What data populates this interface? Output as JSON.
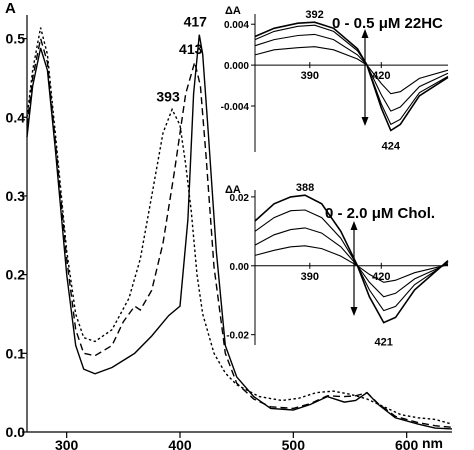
{
  "chart_data": [
    {
      "type": "line",
      "ylabel": "A",
      "xunit": "nm",
      "xlim": [
        265,
        640
      ],
      "ylim": [
        0,
        0.53
      ],
      "xticks": [
        300,
        400,
        500,
        600
      ],
      "yticks": [
        0.0,
        0.1,
        0.2,
        0.3,
        0.4,
        0.5
      ],
      "ytick_labels": [
        "0.0",
        "0.1",
        "0.2",
        "0.3",
        "0.4",
        "0.5"
      ],
      "peak_labels": [
        {
          "text": "417",
          "x": 417,
          "y": 0.505
        },
        {
          "text": "413",
          "x": 413,
          "y": 0.47
        },
        {
          "text": "393",
          "x": 393,
          "y": 0.41
        }
      ],
      "series": [
        {
          "style": "solid",
          "points": [
            [
              265,
              0.375
            ],
            [
              270,
              0.44
            ],
            [
              277,
              0.488
            ],
            [
              283,
              0.46
            ],
            [
              290,
              0.36
            ],
            [
              300,
              0.2
            ],
            [
              308,
              0.11
            ],
            [
              315,
              0.08
            ],
            [
              325,
              0.074
            ],
            [
              340,
              0.082
            ],
            [
              360,
              0.1
            ],
            [
              375,
              0.122
            ],
            [
              390,
              0.148
            ],
            [
              400,
              0.16
            ],
            [
              407,
              0.27
            ],
            [
              412,
              0.43
            ],
            [
              417,
              0.505
            ],
            [
              420,
              0.48
            ],
            [
              425,
              0.38
            ],
            [
              432,
              0.23
            ],
            [
              440,
              0.11
            ],
            [
              450,
              0.07
            ],
            [
              465,
              0.045
            ],
            [
              480,
              0.03
            ],
            [
              500,
              0.028
            ],
            [
              515,
              0.035
            ],
            [
              530,
              0.045
            ],
            [
              545,
              0.038
            ],
            [
              555,
              0.04
            ],
            [
              565,
              0.05
            ],
            [
              575,
              0.035
            ],
            [
              590,
              0.018
            ],
            [
              610,
              0.01
            ],
            [
              625,
              0.005
            ],
            [
              640,
              0.004
            ]
          ]
        },
        {
          "style": "dashed",
          "points": [
            [
              265,
              0.39
            ],
            [
              270,
              0.45
            ],
            [
              277,
              0.5
            ],
            [
              283,
              0.47
            ],
            [
              290,
              0.37
            ],
            [
              300,
              0.22
            ],
            [
              308,
              0.13
            ],
            [
              315,
              0.1
            ],
            [
              325,
              0.097
            ],
            [
              340,
              0.11
            ],
            [
              350,
              0.14
            ],
            [
              360,
              0.16
            ],
            [
              365,
              0.155
            ],
            [
              375,
              0.18
            ],
            [
              385,
              0.24
            ],
            [
              395,
              0.33
            ],
            [
              405,
              0.43
            ],
            [
              413,
              0.47
            ],
            [
              418,
              0.44
            ],
            [
              423,
              0.35
            ],
            [
              430,
              0.21
            ],
            [
              440,
              0.1
            ],
            [
              450,
              0.062
            ],
            [
              465,
              0.042
            ],
            [
              480,
              0.032
            ],
            [
              500,
              0.03
            ],
            [
              515,
              0.036
            ],
            [
              530,
              0.046
            ],
            [
              545,
              0.045
            ],
            [
              555,
              0.046
            ],
            [
              565,
              0.05
            ],
            [
              575,
              0.036
            ],
            [
              590,
              0.02
            ],
            [
              610,
              0.012
            ],
            [
              625,
              0.008
            ],
            [
              640,
              0.006
            ]
          ]
        },
        {
          "style": "dotted",
          "points": [
            [
              265,
              0.4
            ],
            [
              270,
              0.46
            ],
            [
              277,
              0.514
            ],
            [
              283,
              0.48
            ],
            [
              290,
              0.38
            ],
            [
              300,
              0.23
            ],
            [
              308,
              0.15
            ],
            [
              315,
              0.12
            ],
            [
              325,
              0.115
            ],
            [
              340,
              0.13
            ],
            [
              355,
              0.17
            ],
            [
              365,
              0.22
            ],
            [
              375,
              0.3
            ],
            [
              385,
              0.38
            ],
            [
              393,
              0.41
            ],
            [
              400,
              0.39
            ],
            [
              405,
              0.34
            ],
            [
              410,
              0.28
            ],
            [
              415,
              0.2
            ],
            [
              420,
              0.15
            ],
            [
              430,
              0.1
            ],
            [
              440,
              0.075
            ],
            [
              450,
              0.06
            ],
            [
              470,
              0.045
            ],
            [
              490,
              0.04
            ],
            [
              505,
              0.043
            ],
            [
              520,
              0.05
            ],
            [
              535,
              0.052
            ],
            [
              550,
              0.048
            ],
            [
              565,
              0.042
            ],
            [
              580,
              0.032
            ],
            [
              595,
              0.022
            ],
            [
              610,
              0.018
            ],
            [
              625,
              0.016
            ],
            [
              640,
              0.01
            ]
          ]
        }
      ]
    },
    {
      "type": "line",
      "ylabel": "ΔA",
      "title": "0 - 0.5 μM 22HC",
      "xlim": [
        367,
        448
      ],
      "ylim": [
        -0.0085,
        0.005
      ],
      "xticks": [
        390,
        420
      ],
      "yticks": [
        0.004,
        0.0,
        -0.004
      ],
      "ytick_labels": [
        "0.004",
        "0.000",
        "-0.004"
      ],
      "peak_labels": [
        {
          "text": "392",
          "x": 392,
          "y": 0.0042
        },
        {
          "text": "424",
          "x": 424,
          "y": -0.0067
        }
      ],
      "series": [
        {
          "points": [
            [
              367,
              0.0028
            ],
            [
              375,
              0.0036
            ],
            [
              385,
              0.0041
            ],
            [
              392,
              0.0042
            ],
            [
              400,
              0.0036
            ],
            [
              410,
              0.0016
            ],
            [
              414,
              0.0
            ],
            [
              420,
              -0.0042
            ],
            [
              424,
              -0.0064
            ],
            [
              428,
              -0.0058
            ],
            [
              436,
              -0.003
            ],
            [
              448,
              -0.0012
            ]
          ]
        },
        {
          "points": [
            [
              367,
              0.0025
            ],
            [
              375,
              0.0033
            ],
            [
              385,
              0.0038
            ],
            [
              392,
              0.0039
            ],
            [
              400,
              0.0033
            ],
            [
              410,
              0.0014
            ],
            [
              414,
              0.0
            ],
            [
              420,
              -0.0038
            ],
            [
              424,
              -0.0058
            ],
            [
              428,
              -0.0053
            ],
            [
              436,
              -0.0027
            ],
            [
              448,
              -0.0011
            ]
          ]
        },
        {
          "points": [
            [
              367,
              0.0019
            ],
            [
              375,
              0.0025
            ],
            [
              385,
              0.0029
            ],
            [
              392,
              0.003
            ],
            [
              400,
              0.0025
            ],
            [
              410,
              0.001
            ],
            [
              414,
              0.0
            ],
            [
              420,
              -0.0029
            ],
            [
              424,
              -0.0045
            ],
            [
              428,
              -0.0041
            ],
            [
              436,
              -0.0021
            ],
            [
              448,
              -0.0008
            ]
          ]
        },
        {
          "points": [
            [
              367,
              0.001
            ],
            [
              375,
              0.0015
            ],
            [
              385,
              0.0017
            ],
            [
              392,
              0.0018
            ],
            [
              400,
              0.0015
            ],
            [
              410,
              0.0006
            ],
            [
              414,
              0.0
            ],
            [
              420,
              -0.0018
            ],
            [
              424,
              -0.0028
            ],
            [
              428,
              -0.0026
            ],
            [
              436,
              -0.0013
            ],
            [
              448,
              -0.0005
            ]
          ]
        }
      ]
    },
    {
      "type": "line",
      "ylabel": "ΔA",
      "title": "0 - 2.0 μM Chol.",
      "xlim": [
        367,
        448
      ],
      "ylim": [
        -0.023,
        0.022
      ],
      "xticks": [
        390,
        420
      ],
      "yticks": [
        0.02,
        0.0,
        -0.02
      ],
      "ytick_labels": [
        "0.02",
        "0.00",
        "-0.02"
      ],
      "peak_labels": [
        {
          "text": "388",
          "x": 388,
          "y": 0.0205
        },
        {
          "text": "421",
          "x": 421,
          "y": -0.0185
        }
      ],
      "series": [
        {
          "points": [
            [
              367,
              0.013
            ],
            [
              375,
              0.018
            ],
            [
              382,
              0.02
            ],
            [
              388,
              0.0205
            ],
            [
              395,
              0.018
            ],
            [
              403,
              0.01
            ],
            [
              410,
              0.0
            ],
            [
              415,
              -0.009
            ],
            [
              421,
              -0.0165
            ],
            [
              426,
              -0.015
            ],
            [
              434,
              -0.007
            ],
            [
              448,
              0.0015
            ]
          ]
        },
        {
          "points": [
            [
              367,
              0.01
            ],
            [
              375,
              0.014
            ],
            [
              382,
              0.016
            ],
            [
              388,
              0.0162
            ],
            [
              395,
              0.014
            ],
            [
              403,
              0.008
            ],
            [
              410,
              0.0
            ],
            [
              415,
              -0.007
            ],
            [
              421,
              -0.013
            ],
            [
              426,
              -0.0118
            ],
            [
              434,
              -0.0055
            ],
            [
              448,
              0.001
            ]
          ]
        },
        {
          "points": [
            [
              367,
              0.006
            ],
            [
              375,
              0.009
            ],
            [
              382,
              0.0105
            ],
            [
              388,
              0.011
            ],
            [
              395,
              0.0095
            ],
            [
              403,
              0.0055
            ],
            [
              410,
              0.0
            ],
            [
              415,
              -0.0048
            ],
            [
              421,
              -0.009
            ],
            [
              426,
              -0.008
            ],
            [
              434,
              -0.0038
            ],
            [
              448,
              0.0006
            ]
          ]
        },
        {
          "points": [
            [
              367,
              0.003
            ],
            [
              375,
              0.0045
            ],
            [
              382,
              0.0055
            ],
            [
              388,
              0.0058
            ],
            [
              395,
              0.005
            ],
            [
              403,
              0.0028
            ],
            [
              410,
              0.0
            ],
            [
              415,
              -0.0025
            ],
            [
              421,
              -0.0048
            ],
            [
              426,
              -0.0042
            ],
            [
              434,
              -0.002
            ],
            [
              448,
              0.0003
            ]
          ]
        }
      ]
    }
  ]
}
